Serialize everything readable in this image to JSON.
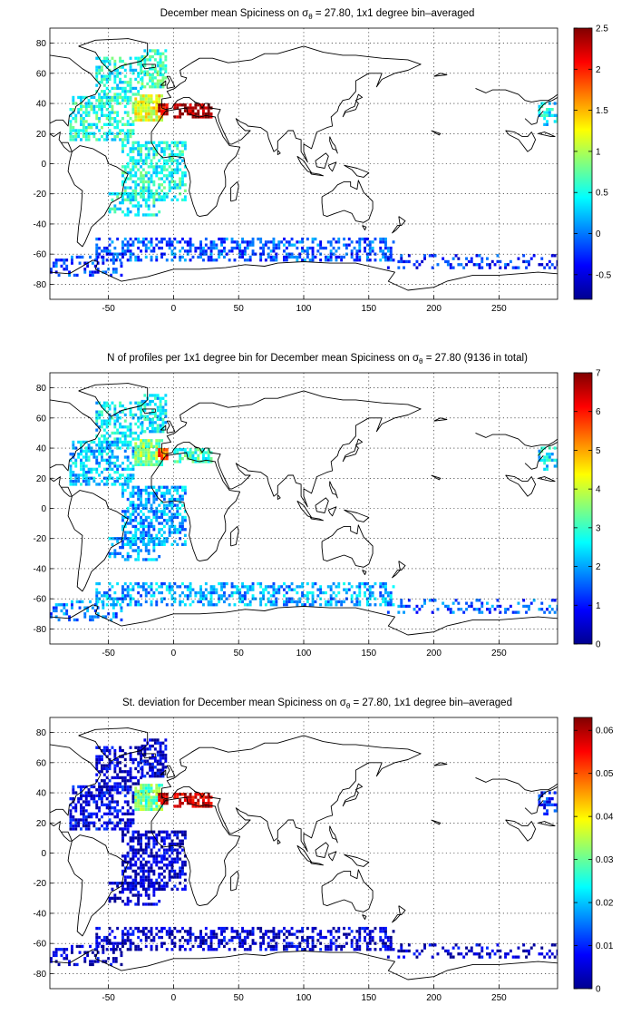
{
  "page": {
    "background": "#ffffff"
  },
  "colormap": {
    "name": "jet",
    "stops": [
      "#00008f",
      "#0000ff",
      "#0080ff",
      "#00ffff",
      "#80ff80",
      "#ffff00",
      "#ff8000",
      "#ff0000",
      "#800000"
    ]
  },
  "axes": {
    "xlim": [
      -95,
      295
    ],
    "ylim": [
      -90,
      90
    ],
    "xticks": [
      -50,
      0,
      50,
      100,
      150,
      200,
      250
    ],
    "yticks": [
      80,
      60,
      40,
      20,
      0,
      -20,
      -40,
      -60,
      -80
    ],
    "grid": "dotted"
  },
  "chart_data": [
    {
      "type": "heatmap",
      "title_prefix": "December mean Spiciness on σ",
      "title_sub": "θ",
      "title_suffix": " = 27.80, 1x1 degree bin–averaged",
      "colorbar": {
        "clim": [
          -0.8,
          2.5
        ],
        "ticks": [
          "2.5",
          "2",
          "1.5",
          "1",
          "0.5",
          "0",
          "-0.5"
        ],
        "tick_values": [
          2.5,
          2,
          1.5,
          1,
          0.5,
          0,
          -0.5
        ]
      },
      "regions": [
        {
          "lon": [
            -60,
            -25
          ],
          "lat": [
            45,
            70
          ],
          "value": 0.5,
          "density": 0.55
        },
        {
          "lon": [
            -25,
            -5
          ],
          "lat": [
            50,
            75
          ],
          "value": 0.6,
          "density": 0.6
        },
        {
          "lon": [
            -80,
            -30
          ],
          "lat": [
            15,
            45
          ],
          "value": 0.55,
          "density": 0.6
        },
        {
          "lon": [
            -30,
            -8
          ],
          "lat": [
            28,
            45
          ],
          "value": 1.2,
          "density": 0.85
        },
        {
          "lon": [
            -12,
            -4
          ],
          "lat": [
            32,
            40
          ],
          "value": 2.2,
          "density": 0.95
        },
        {
          "lon": [
            0,
            30
          ],
          "lat": [
            30,
            40
          ],
          "value": 2.4,
          "density": 0.6
        },
        {
          "lon": [
            -40,
            10
          ],
          "lat": [
            -25,
            15
          ],
          "value": 0.5,
          "density": 0.55
        },
        {
          "lon": [
            -50,
            -10
          ],
          "lat": [
            -35,
            -20
          ],
          "value": 0.45,
          "density": 0.45
        },
        {
          "lon": [
            -60,
            170
          ],
          "lat": [
            -65,
            -50
          ],
          "value": -0.1,
          "density": 0.45
        },
        {
          "lon": [
            -95,
            -40
          ],
          "lat": [
            -75,
            -62
          ],
          "value": -0.2,
          "density": 0.35
        },
        {
          "lon": [
            160,
            295
          ],
          "lat": [
            -70,
            -60
          ],
          "value": -0.3,
          "density": 0.25
        },
        {
          "lon": [
            280,
            295
          ],
          "lat": [
            25,
            40
          ],
          "value": 0.4,
          "density": 0.5
        }
      ]
    },
    {
      "type": "heatmap",
      "title_prefix": "N of profiles per 1x1 degree bin for December mean Spiciness on σ",
      "title_sub": "θ",
      "title_suffix": " = 27.80 (9136 in total)",
      "total_profiles": 9136,
      "colorbar": {
        "clim": [
          0,
          7
        ],
        "ticks": [
          "7",
          "6",
          "5",
          "4",
          "3",
          "2",
          "1",
          "0"
        ],
        "tick_values": [
          7,
          6,
          5,
          4,
          3,
          2,
          1,
          0
        ]
      },
      "regions": [
        {
          "lon": [
            -60,
            -25
          ],
          "lat": [
            45,
            70
          ],
          "value": 2.5,
          "density": 0.55
        },
        {
          "lon": [
            -25,
            -5
          ],
          "lat": [
            50,
            75
          ],
          "value": 2.5,
          "density": 0.6
        },
        {
          "lon": [
            -80,
            -30
          ],
          "lat": [
            15,
            45
          ],
          "value": 2.2,
          "density": 0.6
        },
        {
          "lon": [
            -30,
            -8
          ],
          "lat": [
            28,
            45
          ],
          "value": 3.5,
          "density": 0.85
        },
        {
          "lon": [
            -12,
            -4
          ],
          "lat": [
            32,
            40
          ],
          "value": 5.5,
          "density": 0.95
        },
        {
          "lon": [
            0,
            30
          ],
          "lat": [
            30,
            40
          ],
          "value": 3,
          "density": 0.6
        },
        {
          "lon": [
            -40,
            10
          ],
          "lat": [
            -25,
            15
          ],
          "value": 2,
          "density": 0.55
        },
        {
          "lon": [
            -50,
            -10
          ],
          "lat": [
            -35,
            -20
          ],
          "value": 2,
          "density": 0.45
        },
        {
          "lon": [
            -60,
            170
          ],
          "lat": [
            -65,
            -50
          ],
          "value": 2,
          "density": 0.45
        },
        {
          "lon": [
            -95,
            -40
          ],
          "lat": [
            -75,
            -62
          ],
          "value": 1.8,
          "density": 0.35
        },
        {
          "lon": [
            160,
            295
          ],
          "lat": [
            -70,
            -60
          ],
          "value": 1.5,
          "density": 0.25
        },
        {
          "lon": [
            280,
            295
          ],
          "lat": [
            25,
            40
          ],
          "value": 2.5,
          "density": 0.5
        }
      ]
    },
    {
      "type": "heatmap",
      "title_prefix": "St. deviation for December mean Spiciness on σ",
      "title_sub": "θ",
      "title_suffix": " = 27.80, 1x1 degree bin–averaged",
      "colorbar": {
        "clim": [
          0,
          0.063
        ],
        "ticks": [
          "0.06",
          "0.05",
          "0.04",
          "0.03",
          "0.02",
          "0.01",
          "0"
        ],
        "tick_values": [
          0.06,
          0.05,
          0.04,
          0.03,
          0.02,
          0.01,
          0
        ]
      },
      "regions": [
        {
          "lon": [
            -60,
            -25
          ],
          "lat": [
            45,
            70
          ],
          "value": 0.004,
          "density": 0.55
        },
        {
          "lon": [
            -25,
            -5
          ],
          "lat": [
            50,
            75
          ],
          "value": 0.005,
          "density": 0.6
        },
        {
          "lon": [
            -80,
            -30
          ],
          "lat": [
            15,
            45
          ],
          "value": 0.006,
          "density": 0.6
        },
        {
          "lon": [
            -30,
            -8
          ],
          "lat": [
            28,
            45
          ],
          "value": 0.03,
          "density": 0.85
        },
        {
          "lon": [
            -12,
            -4
          ],
          "lat": [
            32,
            40
          ],
          "value": 0.06,
          "density": 0.95
        },
        {
          "lon": [
            0,
            30
          ],
          "lat": [
            30,
            40
          ],
          "value": 0.058,
          "density": 0.6
        },
        {
          "lon": [
            -40,
            10
          ],
          "lat": [
            -25,
            15
          ],
          "value": 0.004,
          "density": 0.55
        },
        {
          "lon": [
            -50,
            -10
          ],
          "lat": [
            -35,
            -20
          ],
          "value": 0.004,
          "density": 0.45
        },
        {
          "lon": [
            -60,
            170
          ],
          "lat": [
            -65,
            -50
          ],
          "value": 0.004,
          "density": 0.45
        },
        {
          "lon": [
            -95,
            -40
          ],
          "lat": [
            -75,
            -62
          ],
          "value": 0.004,
          "density": 0.35
        },
        {
          "lon": [
            160,
            295
          ],
          "lat": [
            -70,
            -60
          ],
          "value": 0.004,
          "density": 0.25
        },
        {
          "lon": [
            280,
            295
          ],
          "lat": [
            25,
            40
          ],
          "value": 0.01,
          "density": 0.5
        }
      ]
    }
  ]
}
